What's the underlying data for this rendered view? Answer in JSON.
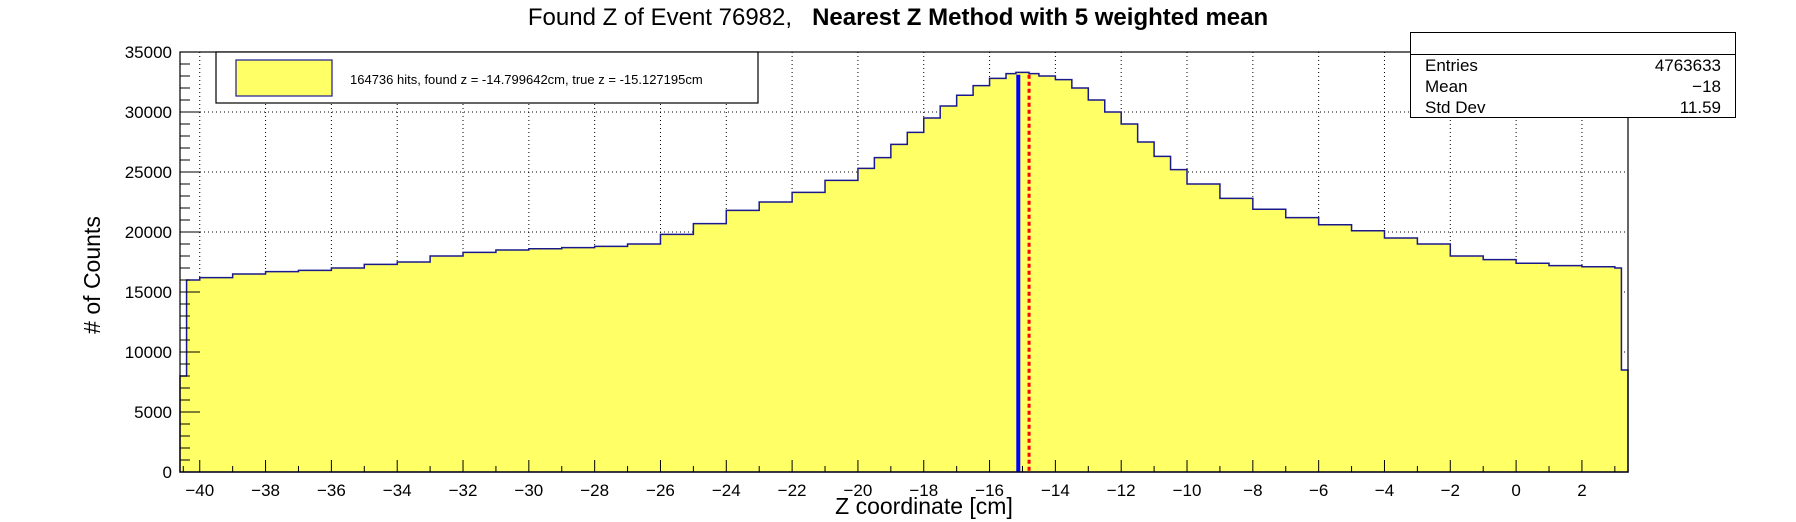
{
  "title": {
    "main": "Found Z of Event 76982,",
    "bold": "Nearest Z Method with 5 weighted mean"
  },
  "stats": {
    "rows": [
      {
        "key": "Entries",
        "value": "4763633"
      },
      {
        "key": "Mean",
        "value": "−18"
      },
      {
        "key": "Std Dev",
        "value": "11.59"
      }
    ]
  },
  "legend": {
    "label": "164736 hits, found z = -14.799642cm, true z = -15.127195cm"
  },
  "colors": {
    "fill": "#ffff66",
    "outline": "#1a1a8c",
    "true_z_line": "#0000ff",
    "found_z_line": "#ff0000"
  },
  "chart_data": {
    "type": "bar",
    "xlabel": "Z coordinate [cm]",
    "ylabel": "# of Counts",
    "xlim": [
      -40.6,
      3.4
    ],
    "ylim": [
      0,
      35000
    ],
    "x_ticks": [
      "−40",
      "−38",
      "−36",
      "−34",
      "−32",
      "−30",
      "−28",
      "−26",
      "−24",
      "−22",
      "−20",
      "−18",
      "−16",
      "−14",
      "−12",
      "−10",
      "−8",
      "−6",
      "−4",
      "−2",
      "0",
      "2"
    ],
    "x_tick_values": [
      -40,
      -38,
      -36,
      -34,
      -32,
      -30,
      -28,
      -26,
      -24,
      -22,
      -20,
      -18,
      -16,
      -14,
      -12,
      -10,
      -8,
      -6,
      -4,
      -2,
      0,
      2
    ],
    "y_ticks": [
      "0",
      "5000",
      "10000",
      "15000",
      "20000",
      "25000",
      "30000",
      "35000"
    ],
    "y_tick_values": [
      0,
      5000,
      10000,
      15000,
      20000,
      25000,
      30000,
      35000
    ],
    "grid": true,
    "legend_position": "top-left",
    "profile_x": [
      -40.6,
      -40.4,
      -40,
      -39,
      -38,
      -37,
      -36,
      -35,
      -34,
      -33,
      -32,
      -31,
      -30,
      -29,
      -28,
      -27,
      -26,
      -25,
      -24,
      -23,
      -22,
      -21,
      -20,
      -19.5,
      -19,
      -18.5,
      -18,
      -17.5,
      -17,
      -16.5,
      -16,
      -15.5,
      -15.2,
      -14.8,
      -14.5,
      -14,
      -13.5,
      -13,
      -12.5,
      -12,
      -11.5,
      -11,
      -10.5,
      -10,
      -9,
      -8,
      -7,
      -6,
      -5,
      -4,
      -3,
      -2,
      -1,
      0,
      1,
      2,
      3,
      3.1,
      3.2,
      3.4
    ],
    "profile_y": [
      8000,
      16000,
      16200,
      16500,
      16700,
      16800,
      17000,
      17300,
      17500,
      18000,
      18300,
      18500,
      18600,
      18700,
      18800,
      19000,
      19800,
      20700,
      21800,
      22500,
      23300,
      24300,
      25300,
      26200,
      27300,
      28300,
      29500,
      30500,
      31400,
      32200,
      32800,
      33200,
      33300,
      33200,
      33000,
      32700,
      32000,
      31000,
      30000,
      29000,
      27500,
      26300,
      25200,
      24000,
      22800,
      21900,
      21200,
      20600,
      20100,
      19500,
      19000,
      18000,
      17700,
      17400,
      17200,
      17100,
      17000,
      17000,
      8500,
      8500
    ],
    "vertical_lines": [
      {
        "x": -15.127195,
        "style": "solid",
        "color": "#0000ff"
      },
      {
        "x": -14.799642,
        "style": "dashed",
        "color": "#ff0000"
      }
    ]
  }
}
